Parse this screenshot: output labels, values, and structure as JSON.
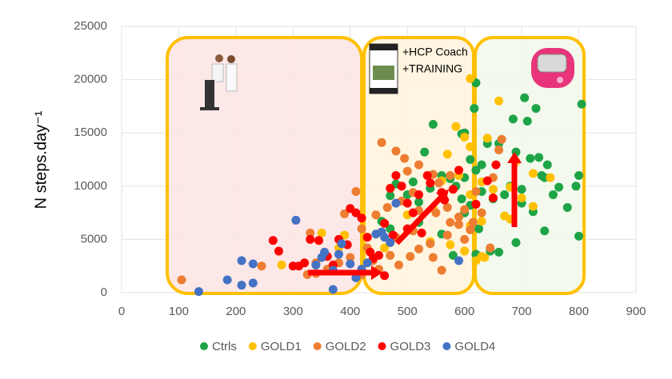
{
  "chart_data": {
    "type": "scatter",
    "y_label": "N steps.day⁻¹",
    "annotations": [
      "+HCP Coach",
      "+TRAINING"
    ],
    "xlim": [
      0,
      900
    ],
    "xticks": [
      0,
      100,
      200,
      300,
      400,
      500,
      600,
      700,
      800,
      900
    ],
    "ylim": [
      0,
      25000
    ],
    "yticks": [
      0,
      5000,
      10000,
      15000,
      20000,
      25000
    ],
    "grid": true,
    "legend": "bottom",
    "series": [
      {
        "name": "Ctrls",
        "color": "#1ea446",
        "x": [
          620,
          617,
          705,
          725,
          685,
          710,
          545,
          600,
          595,
          530,
          640,
          660,
          690,
          730,
          715,
          805,
          800,
          795,
          765,
          745,
          735,
          740,
          755,
          610,
          620,
          630,
          600,
          575,
          560,
          540,
          510,
          480,
          470,
          500,
          520,
          585,
          595,
          610,
          630,
          650,
          670,
          700,
          720,
          740,
          690,
          660,
          645,
          620,
          580,
          560,
          520,
          455,
          470,
          700,
          780,
          625,
          800,
          680,
          600
        ],
        "values": [
          19700,
          17300,
          18300,
          17300,
          16300,
          16100,
          15800,
          15000,
          14900,
          13200,
          14000,
          14000,
          13200,
          12700,
          12600,
          17700,
          11000,
          10000,
          9900,
          12000,
          11000,
          10800,
          9200,
          12500,
          11500,
          12000,
          10800,
          10700,
          11000,
          9800,
          10400,
          10200,
          9100,
          9200,
          8500,
          10000,
          8800,
          8200,
          9500,
          8800,
          9200,
          8400,
          7600,
          5800,
          4700,
          3800,
          3900,
          3600,
          3500,
          5500,
          6600,
          6700,
          6000,
          9700,
          8000,
          6000,
          5300,
          10000,
          7500
        ]
      },
      {
        "name": "GOLD1",
        "color": "#ffc000",
        "x": [
          610,
          660,
          585,
          600,
          640,
          570,
          610,
          690,
          720,
          750,
          680,
          590,
          560,
          630,
          650,
          700,
          720,
          670,
          630,
          610,
          600,
          630,
          620,
          635,
          575,
          540,
          460,
          350,
          380,
          280,
          390,
          545,
          500,
          610,
          680
        ],
        "values": [
          20100,
          18000,
          15600,
          14600,
          14500,
          13000,
          13700,
          12300,
          11200,
          10800,
          9900,
          11000,
          10500,
          10400,
          9700,
          8900,
          8100,
          7200,
          6700,
          6300,
          3900,
          3400,
          3000,
          3300,
          4500,
          4800,
          4200,
          5600,
          4200,
          2600,
          5400,
          7900,
          7300,
          9200,
          6900
        ]
      },
      {
        "name": "GOLD2",
        "color": "#ed7d31",
        "x": [
          105,
          245,
          325,
          340,
          330,
          410,
          390,
          420,
          455,
          480,
          495,
          500,
          520,
          545,
          555,
          575,
          510,
          490,
          465,
          445,
          520,
          550,
          570,
          590,
          600,
          620,
          630,
          650,
          660,
          665,
          600,
          570,
          540,
          520,
          505,
          485,
          470,
          450,
          440,
          400,
          380,
          360,
          340,
          420,
          545,
          560,
          575,
          590,
          610,
          645,
          430,
          615,
          510,
          480
        ],
        "values": [
          1200,
          2500,
          1700,
          2800,
          5600,
          9500,
          7400,
          6000,
          14100,
          13300,
          12600,
          11400,
          12000,
          11100,
          10300,
          11000,
          9400,
          8600,
          8000,
          7300,
          7700,
          7500,
          8000,
          7100,
          7800,
          9500,
          7500,
          10800,
          13400,
          14400,
          5000,
          5400,
          4600,
          4100,
          3400,
          2600,
          3500,
          2200,
          3000,
          3300,
          2800,
          2200,
          1800,
          1700,
          3300,
          2100,
          6600,
          6400,
          5900,
          4200,
          4200,
          6600,
          5800,
          5200
        ]
      },
      {
        "name": "GOLD3",
        "color": "#ff0000",
        "x": [
          265,
          275,
          310,
          320,
          330,
          345,
          360,
          370,
          380,
          395,
          400,
          410,
          420,
          430,
          435,
          440,
          450,
          460,
          460,
          475,
          480,
          490,
          500,
          510,
          520,
          535,
          540,
          560,
          565,
          580,
          590,
          620,
          640,
          650,
          655,
          470,
          500,
          525,
          300
        ],
        "values": [
          4900,
          3900,
          2500,
          2800,
          5000,
          4900,
          3400,
          2600,
          5000,
          4500,
          7900,
          7500,
          7000,
          5200,
          3800,
          3200,
          3500,
          6500,
          1600,
          5400,
          11000,
          10000,
          8400,
          7500,
          9200,
          11000,
          10300,
          9400,
          8700,
          9700,
          11500,
          8300,
          10500,
          8900,
          12000,
          9800,
          6000,
          5600,
          2500
        ]
      },
      {
        "name": "GOLD4",
        "color": "#4472c4",
        "x": [
          135,
          185,
          210,
          210,
          230,
          230,
          305,
          340,
          350,
          355,
          370,
          380,
          385,
          400,
          420,
          430,
          445,
          455,
          460,
          470,
          480,
          590,
          410,
          370
        ],
        "values": [
          100,
          1200,
          3000,
          700,
          2700,
          900,
          6800,
          2600,
          3300,
          3800,
          2100,
          3600,
          4600,
          2700,
          2200,
          2800,
          5500,
          5700,
          5200,
          4700,
          8400,
          3000,
          1400,
          300
        ]
      }
    ]
  }
}
